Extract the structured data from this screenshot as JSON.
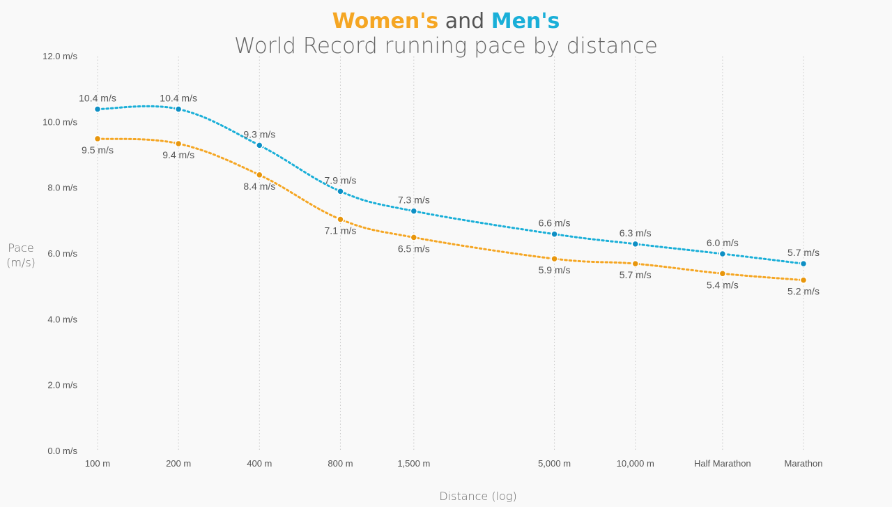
{
  "title": {
    "women": "Women's",
    "and": "and",
    "men": "Men's",
    "subtitle": "World Record running pace by distance"
  },
  "colors": {
    "women": "#f5a623",
    "men": "#1aafd8",
    "womenMarker": "#e8960c",
    "menMarker": "#0e8fc4"
  },
  "chart_data": {
    "type": "line",
    "xlabel": "Distance (log)",
    "ylabel_lines": [
      "Pace",
      "(m/s)"
    ],
    "x_scale": "log",
    "categories": [
      "100 m",
      "200 m",
      "400 m",
      "800 m",
      "1,500 m",
      "5,000 m",
      "10,000 m",
      "Half Marathon",
      "Marathon"
    ],
    "x": [
      100,
      200,
      400,
      800,
      1500,
      5000,
      10000,
      21097.5,
      42195
    ],
    "ylim": [
      0,
      12
    ],
    "yticks": [
      0,
      2,
      4,
      6,
      8,
      10,
      12
    ],
    "ytick_labels": [
      "0.0 m/s",
      "2.0 m/s",
      "4.0 m/s",
      "6.0 m/s",
      "8.0 m/s",
      "10.0 m/s",
      "12.0 m/s"
    ],
    "grid": "vertical dotted",
    "series": [
      {
        "name": "Men's",
        "values": [
          10.4,
          10.4,
          9.3,
          7.9,
          7.3,
          6.6,
          6.3,
          6.0,
          5.7
        ],
        "labels": [
          "10.4 m/s",
          "10.4 m/s",
          "9.3 m/s",
          "7.9 m/s",
          "7.3 m/s",
          "6.6 m/s",
          "6.3 m/s",
          "6.0 m/s",
          "5.7 m/s"
        ]
      },
      {
        "name": "Women's",
        "values": [
          9.5,
          9.35,
          8.4,
          7.05,
          6.5,
          5.85,
          5.7,
          5.4,
          5.2
        ],
        "labels": [
          "9.5 m/s",
          "9.4 m/s",
          "8.4 m/s",
          "7.1 m/s",
          "6.5 m/s",
          "5.9 m/s",
          "5.7 m/s",
          "5.4 m/s",
          "5.2 m/s"
        ]
      }
    ]
  }
}
